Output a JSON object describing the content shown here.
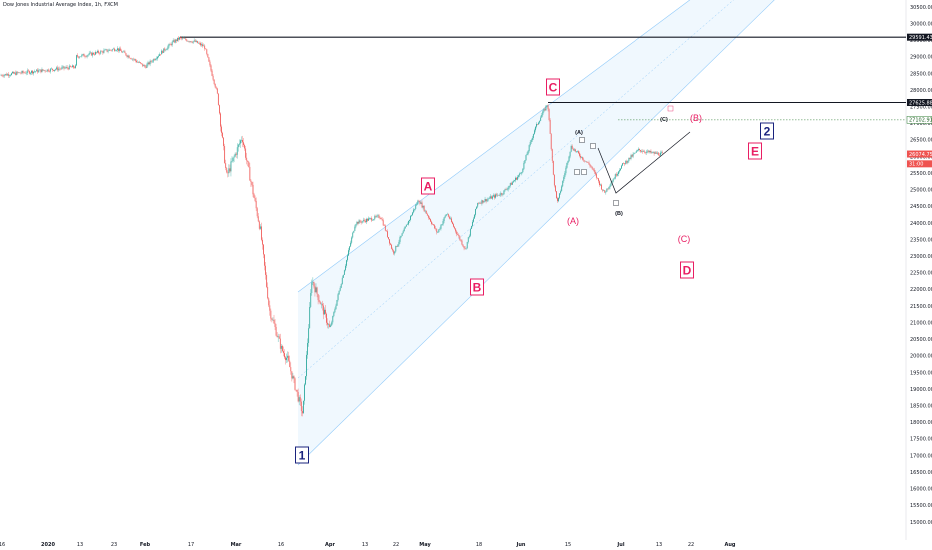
{
  "header": {
    "title": "Dow Jones Industrial Average Index, 1h, FXCM"
  },
  "colors": {
    "up": "#26a69a",
    "down": "#ef5350",
    "wave_red": "#e91e63",
    "wave_navy": "#1a237e",
    "channel": "#bbdefb"
  },
  "chart_data": {
    "type": "candlestick",
    "title": "Dow Jones Industrial Average Index, 1h, FXCM",
    "ylim": [
      14500,
      30700
    ],
    "y_ticks": [
      "30500.00",
      "30000.00",
      "29500.00",
      "29000.00",
      "28500.00",
      "28000.00",
      "27500.00",
      "27000.00",
      "26500.00",
      "26000.00",
      "25500.00",
      "25000.00",
      "24500.00",
      "24000.00",
      "23500.00",
      "23000.00",
      "22500.00",
      "22000.00",
      "21500.00",
      "21000.00",
      "20500.00",
      "20000.00",
      "19500.00",
      "19000.00",
      "18500.00",
      "18000.00",
      "17500.00",
      "17000.00",
      "16500.00",
      "16000.00",
      "15500.00",
      "15000.00"
    ],
    "x_ticks": [
      "16",
      "2020",
      "13",
      "23",
      "Feb",
      "17",
      "Mar",
      "16",
      "Apr",
      "13",
      "22",
      "May",
      "18",
      "Jun",
      "15",
      "Jul",
      "13",
      "22",
      "Aug"
    ],
    "price_labels": [
      {
        "text": "29591.43",
        "value": 29591.43,
        "style": "black"
      },
      {
        "text": "27625.88",
        "value": 27625.88,
        "style": "black"
      },
      {
        "text": "27102.91",
        "value": 27102.91,
        "style": "green"
      },
      {
        "text": "26074.75",
        "value": 26074.75,
        "style": "red"
      },
      {
        "text": "31:00",
        "value": 25780,
        "style": "red"
      }
    ],
    "horizontal_lines": [
      {
        "value": 29591.43,
        "style": "solid"
      },
      {
        "value": 27625.88,
        "style": "solid"
      },
      {
        "value": 27102.91,
        "style": "dotted"
      }
    ],
    "price_path": [
      [
        "start",
        28450
      ],
      [
        "Jan 10",
        28700
      ],
      [
        "2020",
        28900
      ],
      [
        "Jan 13",
        29050
      ],
      [
        "Jan 23",
        29250
      ],
      [
        "Feb 1",
        28700
      ],
      [
        "Feb 10",
        29450
      ],
      [
        "Feb 12",
        29560
      ],
      [
        "Feb 17",
        29450
      ],
      [
        "Feb 20",
        29300
      ],
      [
        "Feb 24",
        27900
      ],
      [
        "Feb 27",
        25400
      ],
      [
        "Mar 3",
        26600
      ],
      [
        "Mar 9",
        23800
      ],
      [
        "Mar 12",
        21400
      ],
      [
        "Mar 16",
        20200
      ],
      [
        "Mar 18",
        19900
      ],
      [
        "Mar 23",
        18250
      ],
      [
        "Mar 26",
        22300
      ],
      [
        "Apr 1",
        20800
      ],
      [
        "Apr 9",
        24000
      ],
      [
        "Apr 17",
        24200
      ],
      [
        "Apr 21",
        23100
      ],
      [
        "Apr 29",
        24700
      ],
      [
        "May 5",
        23700
      ],
      [
        "May 8",
        24300
      ],
      [
        "May 14",
        23200
      ],
      [
        "May 18",
        24600
      ],
      [
        "May 26",
        24900
      ],
      [
        "Jun 1",
        25500
      ],
      [
        "Jun 5",
        26800
      ],
      [
        "Jun 9",
        27600
      ],
      [
        "Jun 11",
        25100
      ],
      [
        "Jun 12",
        24600
      ],
      [
        "Jun 16",
        26300
      ],
      [
        "Jun 22",
        25700
      ],
      [
        "Jun 26",
        24900
      ],
      [
        "Jul 1",
        25700
      ],
      [
        "Jul 6",
        26200
      ],
      [
        "Jul 10",
        26100
      ],
      [
        "Jul 13",
        26070
      ]
    ],
    "annotations": [
      {
        "text": "A",
        "style": "box-red"
      },
      {
        "text": "B",
        "style": "box-red"
      },
      {
        "text": "C",
        "style": "box-red"
      },
      {
        "text": "D",
        "style": "box-red"
      },
      {
        "text": "E",
        "style": "box-red"
      },
      {
        "text": "1",
        "style": "box-navy"
      },
      {
        "text": "2",
        "style": "box-navy"
      },
      {
        "text": "(A)",
        "style": "text-red"
      },
      {
        "text": "(B)",
        "style": "text-red"
      },
      {
        "text": "(C)",
        "style": "text-red"
      },
      {
        "text": "(A)",
        "style": "text-black"
      },
      {
        "text": "(B)",
        "style": "text-black"
      },
      {
        "text": "(C)",
        "style": "text-black"
      }
    ]
  }
}
